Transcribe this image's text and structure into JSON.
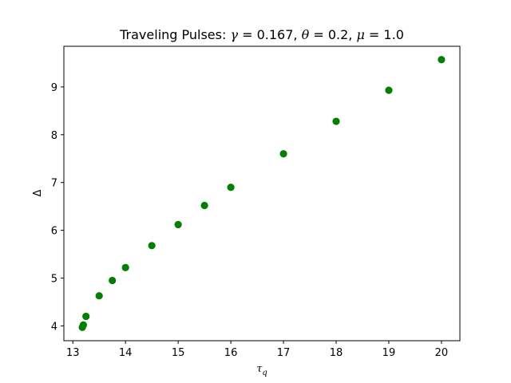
{
  "chart_data": {
    "type": "scatter",
    "title_parts": [
      {
        "t": "Traveling Pulses: ",
        "it": false
      },
      {
        "t": "γ",
        "it": true
      },
      {
        "t": " = 0.167, ",
        "it": false
      },
      {
        "t": "θ",
        "it": true
      },
      {
        "t": " = 0.2, ",
        "it": false
      },
      {
        "t": "μ",
        "it": true
      },
      {
        "t": " = 1.0",
        "it": false
      }
    ],
    "xlabel": "τ",
    "xlabel_sub": "q",
    "ylabel": "Δ",
    "xlim": [
      12.83,
      20.35
    ],
    "ylim": [
      3.69,
      9.85
    ],
    "xticks": [
      13,
      14,
      15,
      16,
      17,
      18,
      19,
      20
    ],
    "yticks": [
      4,
      5,
      6,
      7,
      8,
      9
    ],
    "grid": false,
    "color": "#008000",
    "x": [
      13.18,
      13.2,
      13.25,
      13.5,
      13.75,
      14.0,
      14.5,
      15.0,
      15.5,
      16.0,
      17.0,
      18.0,
      19.0,
      20.0
    ],
    "y": [
      3.97,
      4.02,
      4.2,
      4.63,
      4.95,
      5.22,
      5.68,
      6.12,
      6.52,
      6.9,
      7.6,
      8.28,
      8.93,
      9.57
    ]
  }
}
